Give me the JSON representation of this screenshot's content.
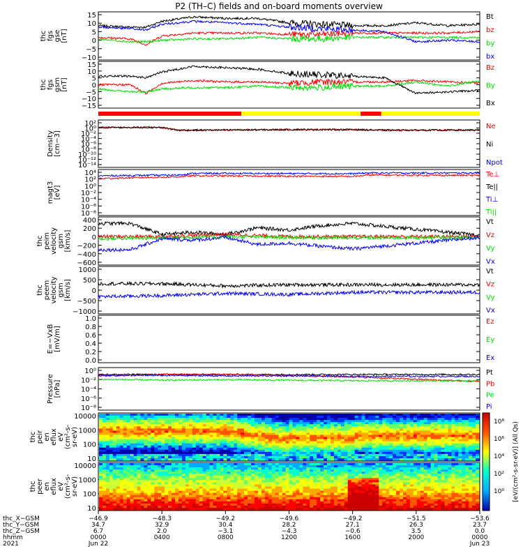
{
  "title": "P2 (TH–C) fields and on-board moments overview",
  "colors": {
    "black": "#000000",
    "red": "#ff0000",
    "green": "#00dd00",
    "blue": "#0000ff",
    "yellow": "#ffff00",
    "darkred": "#990000"
  },
  "panels": [
    {
      "id": "fgs-gse",
      "ylabel": [
        "thc",
        "fgs",
        "gse",
        "[nT]"
      ],
      "ticks": [
        "15",
        "10",
        "5",
        "0",
        "−5",
        "−10"
      ],
      "legend": [
        {
          "t": "Bt",
          "c": "black"
        },
        {
          "t": "bz",
          "c": "red"
        },
        {
          "t": "by",
          "c": "green"
        },
        {
          "t": "bx",
          "c": "blue"
        }
      ]
    },
    {
      "id": "fgs-gsm",
      "ylabel": [
        "thc",
        "fgs",
        "gsm",
        "[nT]"
      ],
      "ticks": [
        "15",
        "10",
        "5",
        "0",
        "−5",
        "−10",
        "−15"
      ],
      "legend": [
        {
          "t": "Bz",
          "c": "red"
        },
        {
          "t": "By",
          "c": "green"
        },
        {
          "t": "Bx",
          "c": "black"
        }
      ]
    },
    {
      "id": "density",
      "ylabel": [
        "Density",
        "[cm−3]"
      ],
      "ticks": [
        "10²",
        "10⁰",
        "10⁻²",
        "10⁻⁴",
        "10⁻⁶",
        "10⁻⁸",
        "10⁻¹⁰",
        "10⁻¹²",
        "10⁻¹⁴"
      ],
      "legend": [
        {
          "t": "Ne",
          "c": "red"
        },
        {
          "t": "Ni",
          "c": "black"
        },
        {
          "t": "Npot",
          "c": "blue"
        }
      ]
    },
    {
      "id": "temperature",
      "ylabel": [
        "magt3",
        "[eV]"
      ],
      "ticks": [
        "10⁴",
        "10²",
        "10⁰",
        "10⁻²",
        "10⁻⁴",
        "10⁻⁶",
        "10⁻⁸"
      ],
      "legend": [
        {
          "t": "Te⊥",
          "c": "red"
        },
        {
          "t": "Te||",
          "c": "black"
        },
        {
          "t": "Ti⊥",
          "c": "blue"
        },
        {
          "t": "Ti||",
          "c": "green"
        }
      ]
    },
    {
      "id": "peim-velocity",
      "ylabel": [
        "thc",
        "peim",
        "velocity",
        "gsm",
        "[km/s]"
      ],
      "ticks": [
        "400",
        "200",
        "0",
        "−200",
        "−400",
        "−600"
      ],
      "legend": [
        {
          "t": "Vt",
          "c": "black"
        },
        {
          "t": "Vz",
          "c": "red"
        },
        {
          "t": "Vy",
          "c": "green"
        },
        {
          "t": "Vx",
          "c": "blue"
        }
      ]
    },
    {
      "id": "peem-velocity",
      "ylabel": [
        "thc",
        "peem",
        "velocity",
        "gsm",
        "[km/s]"
      ],
      "ticks": [
        "1000",
        "500",
        "0",
        "−500",
        "−1000"
      ],
      "legend": [
        {
          "t": "Vt",
          "c": "black"
        },
        {
          "t": "Vz",
          "c": "red"
        },
        {
          "t": "Vy",
          "c": "green"
        },
        {
          "t": "Vx",
          "c": "blue"
        }
      ]
    },
    {
      "id": "efield",
      "ylabel": [
        "E=−VxB",
        "[mV/m]"
      ],
      "ticks": [
        "1.0",
        "0.8",
        "0.6",
        "0.4",
        "0.2",
        "0.0"
      ],
      "legend": [
        {
          "t": "Ez",
          "c": "red"
        },
        {
          "t": "Ey",
          "c": "green"
        },
        {
          "t": "Ex",
          "c": "blue"
        }
      ]
    },
    {
      "id": "pressure",
      "ylabel": [
        "Pressure",
        "[nPa]"
      ],
      "ticks": [
        "10⁰",
        "10⁻²",
        "10⁻⁴",
        "10⁻⁶",
        "10⁻⁸"
      ],
      "legend": [
        {
          "t": "Pt",
          "c": "black"
        },
        {
          "t": "Pb",
          "c": "red"
        },
        {
          "t": "Pe",
          "c": "green"
        },
        {
          "t": "Pi",
          "c": "blue"
        }
      ]
    },
    {
      "id": "peir-spec",
      "ylabel": [
        "thc",
        "peir",
        "en",
        "eflux",
        "eV",
        "(cm²-s-",
        "sr-eV)"
      ],
      "ticks": [
        "10000",
        "1000",
        "100",
        "10"
      ],
      "legend": []
    },
    {
      "id": "peer-spec",
      "ylabel": [
        "thc",
        "peer",
        "en",
        "eflux",
        "eV",
        "(cm²-s-",
        "sr-eV)"
      ],
      "ticks": [
        "10000",
        "1000",
        "100",
        "10"
      ],
      "legend": []
    }
  ],
  "colorbar": {
    "label": "[eV/(cm²-s-sr-eV)] (All Qs)",
    "ticks": [
      "10⁸",
      "10⁶",
      "10⁴",
      "10²",
      "10⁰"
    ]
  },
  "xaxis": {
    "row_labels": [
      "thc_X−GSM",
      "thc_Y−GSM",
      "thc_Z−GSM",
      "hhmm",
      "2021"
    ],
    "columns": [
      {
        "x": "−46.9",
        "y": "34.7",
        "z": "6.7",
        "hhmm": "0000",
        "date": "Jun 22"
      },
      {
        "x": "−48.3",
        "y": "32.9",
        "z": "2.0",
        "hhmm": "0400",
        "date": ""
      },
      {
        "x": "−49.2",
        "y": "30.4",
        "z": "−3.1",
        "hhmm": "0800",
        "date": ""
      },
      {
        "x": "−49.6",
        "y": "28.2",
        "z": "−4.3",
        "hhmm": "1200",
        "date": ""
      },
      {
        "x": "−49.2",
        "y": "27.1",
        "z": "−0.6",
        "hhmm": "1600",
        "date": ""
      },
      {
        "x": "−51.5",
        "y": "26.3",
        "z": "3.5",
        "hhmm": "2000",
        "date": ""
      },
      {
        "x": "−53.6",
        "y": "23.7",
        "z": "0.0",
        "hhmm": "0000",
        "date": "Jun 23"
      }
    ]
  },
  "mode_bar": [
    {
      "from": 0,
      "to": 9,
      "c": "red"
    },
    {
      "from": 9,
      "to": 16.5,
      "c": "yellow"
    },
    {
      "from": 16.5,
      "to": 17.8,
      "c": "red"
    },
    {
      "from": 17.8,
      "to": 24,
      "c": "yellow"
    }
  ],
  "chart_data": {
    "type": "line",
    "title": "P2 (TH–C) fields and on-board moments overview",
    "x_unit": "hours since 2021-06-22 0000",
    "panels": [
      {
        "name": "B GSE [nT]",
        "ylim": [
          -15,
          15
        ],
        "series": [
          {
            "name": "Bt",
            "color": "black",
            "x": [
              0,
              2,
              3,
              4,
              6,
              8,
              10,
              12,
              14,
              16,
              18,
              20,
              22,
              24
            ],
            "y": [
              7,
              6,
              6,
              10,
              13,
              12,
              12,
              9,
              8,
              7,
              7,
              9,
              7,
              8
            ]
          },
          {
            "name": "bz",
            "color": "red",
            "x": [
              0,
              2,
              3,
              4,
              6,
              8,
              10,
              12,
              14,
              16,
              18,
              20,
              22,
              24
            ],
            "y": [
              -1,
              -2,
              -6,
              0,
              2,
              2,
              2,
              1,
              1,
              2,
              2,
              2,
              2,
              3
            ]
          },
          {
            "name": "by",
            "color": "green",
            "x": [
              0,
              2,
              3,
              4,
              6,
              8,
              10,
              12,
              14,
              16,
              18,
              20,
              22,
              24
            ],
            "y": [
              -2,
              -4,
              -4,
              -3,
              -2,
              -2,
              -1,
              -2,
              -2,
              -1,
              -1,
              -1,
              -1,
              -1
            ]
          },
          {
            "name": "bx",
            "color": "blue",
            "x": [
              0,
              2,
              3,
              4,
              6,
              8,
              10,
              12,
              14,
              16,
              18,
              20,
              22,
              24
            ],
            "y": [
              6,
              5,
              4,
              8,
              10,
              9,
              8,
              6,
              5,
              4,
              3,
              -4,
              -3,
              -4
            ]
          }
        ]
      },
      {
        "name": "B GSM [nT]",
        "ylim": [
          -15,
          15
        ],
        "series": [
          {
            "name": "Bz",
            "color": "red",
            "x": [
              0,
              2,
              3,
              4,
              6,
              8,
              10,
              12,
              14,
              16,
              18,
              20,
              22,
              24
            ],
            "y": [
              0,
              0,
              -6,
              1,
              3,
              2,
              2,
              1,
              2,
              2,
              2,
              3,
              2,
              1
            ]
          },
          {
            "name": "By",
            "color": "green",
            "x": [
              0,
              2,
              3,
              4,
              6,
              8,
              10,
              12,
              14,
              16,
              18,
              20,
              22,
              24
            ],
            "y": [
              -3,
              -5,
              -5,
              -3,
              -2,
              -2,
              -1,
              -2,
              -2,
              -1,
              -1,
              2,
              -1,
              3
            ]
          },
          {
            "name": "Bx",
            "color": "black",
            "x": [
              0,
              2,
              3,
              4,
              6,
              8,
              10,
              12,
              14,
              16,
              18,
              20,
              22,
              24
            ],
            "y": [
              6,
              6,
              5,
              9,
              13,
              12,
              11,
              8,
              7,
              6,
              5,
              -6,
              -5,
              -4
            ]
          }
        ]
      },
      {
        "name": "Density [cm-3] (log10)",
        "ylim": [
          -14,
          2
        ],
        "series": [
          {
            "name": "Ne",
            "color": "red",
            "x": [
              0,
              4,
              5,
              6,
              12,
              16,
              18,
              24
            ],
            "y": [
              0,
              0,
              -1,
              -1,
              -0.8,
              -0.8,
              -1,
              -1
            ]
          },
          {
            "name": "Ni",
            "color": "black",
            "x": [
              0,
              4,
              5,
              6,
              12,
              16,
              18,
              24
            ],
            "y": [
              0,
              0,
              -1,
              -1,
              -0.8,
              -0.8,
              -1,
              -1
            ]
          }
        ]
      },
      {
        "name": "Temperature [eV] (log10)",
        "ylim": [
          -8,
          4
        ],
        "series": [
          {
            "name": "Te⊥",
            "color": "red",
            "x": [
              0,
              5,
              6,
              16,
              17,
              24
            ],
            "y": [
              2,
              2.5,
              2.8,
              2.6,
              3,
              2.9
            ]
          },
          {
            "name": "Ti⊥",
            "color": "blue",
            "x": [
              0,
              5,
              6,
              16,
              17,
              24
            ],
            "y": [
              2.8,
              3,
              3.5,
              3.4,
              3.6,
              3.6
            ]
          }
        ]
      },
      {
        "name": "peim velocity gsm [km/s]",
        "ylim": [
          -600,
          400
        ],
        "series": [
          {
            "name": "Vt",
            "color": "black",
            "x": [
              0,
              2,
              4,
              6,
              8,
              10,
              12,
              14,
              16,
              24
            ],
            "y": [
              300,
              300,
              50,
              100,
              50,
              200,
              150,
              250,
              300,
              30
            ]
          },
          {
            "name": "Vz",
            "color": "red",
            "x": [
              0,
              4,
              8,
              12,
              16,
              24
            ],
            "y": [
              0,
              0,
              50,
              0,
              0,
              0
            ]
          },
          {
            "name": "Vy",
            "color": "green",
            "x": [
              0,
              4,
              8,
              12,
              16,
              24
            ],
            "y": [
              -50,
              -30,
              0,
              -20,
              -30,
              -20
            ]
          },
          {
            "name": "Vx",
            "color": "blue",
            "x": [
              0,
              2,
              4,
              6,
              8,
              10,
              12,
              14,
              16,
              24
            ],
            "y": [
              -300,
              -300,
              -50,
              -80,
              -20,
              -180,
              -150,
              -220,
              -280,
              -20
            ]
          }
        ]
      },
      {
        "name": "peem velocity gsm [km/s]",
        "ylim": [
          -1000,
          1000
        ],
        "series": [
          {
            "name": "Vt",
            "color": "black",
            "x": [
              0,
              4,
              8,
              12,
              16,
              24
            ],
            "y": [
              300,
              300,
              200,
              250,
              250,
              250
            ]
          },
          {
            "name": "Vx",
            "color": "blue",
            "x": [
              0,
              4,
              8,
              12,
              16,
              24
            ],
            "y": [
              -300,
              -250,
              -150,
              -200,
              -100,
              -100
            ]
          }
        ]
      },
      {
        "name": "E=−VxB [mV/m]",
        "ylim": [
          0,
          1
        ],
        "series": []
      },
      {
        "name": "Pressure [nPa] (log10)",
        "ylim": [
          -8,
          0
        ],
        "series": [
          {
            "name": "Pt",
            "color": "black",
            "x": [
              0,
              4,
              8,
              12,
              16,
              24
            ],
            "y": [
              -1,
              -1,
              -1,
              -1,
              -1,
              -1
            ]
          },
          {
            "name": "Pb",
            "color": "red",
            "x": [
              0,
              4,
              8,
              12,
              16,
              24
            ],
            "y": [
              -1.3,
              -1,
              -1,
              -1.2,
              -1.5,
              -2.5
            ]
          },
          {
            "name": "Pe",
            "color": "green",
            "x": [
              0,
              4,
              8,
              12,
              16,
              24
            ],
            "y": [
              -2,
              -2.2,
              -2.1,
              -2.2,
              -2.3,
              -2.3
            ]
          },
          {
            "name": "Pi",
            "color": "blue",
            "x": [
              0,
              4,
              8,
              12,
              16,
              24
            ],
            "y": [
              -1.2,
              -1.2,
              -1.3,
              -1.3,
              -1.4,
              -1.4
            ]
          }
        ]
      }
    ]
  }
}
